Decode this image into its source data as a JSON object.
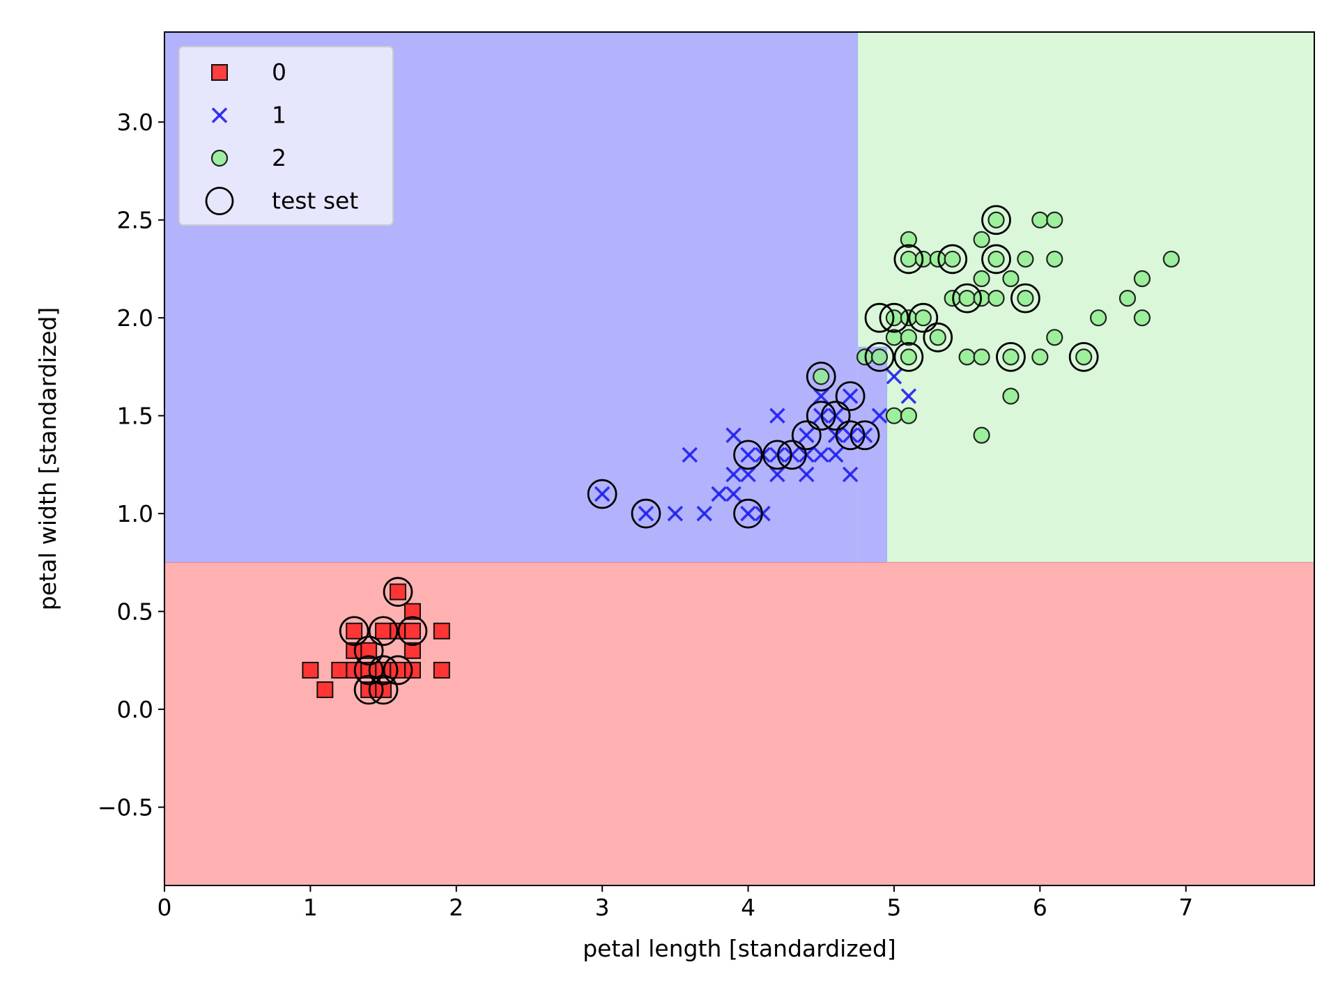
{
  "chart_data": {
    "type": "scatter",
    "title": "",
    "xlabel": "petal length [standardized]",
    "ylabel": "petal width [standardized]",
    "xlim": [
      0,
      7.88
    ],
    "ylim": [
      -0.9,
      3.46
    ],
    "xticks": [
      0,
      1,
      2,
      3,
      4,
      5,
      6,
      7
    ],
    "xtick_labels": [
      "0",
      "1",
      "2",
      "3",
      "4",
      "5",
      "6",
      "7"
    ],
    "yticks": [
      -0.5,
      0.0,
      0.5,
      1.0,
      1.5,
      2.0,
      2.5,
      3.0
    ],
    "ytick_labels": [
      "−0.5",
      "0.0",
      "0.5",
      "1.0",
      "1.5",
      "2.0",
      "2.5",
      "3.0"
    ],
    "grid": false,
    "legend": {
      "placement": "upper left",
      "entries": [
        "0",
        "1",
        "2",
        "test set"
      ]
    },
    "decision_regions": [
      {
        "class": "0",
        "color": "#ffb1b1",
        "x_range": [
          0,
          7.88
        ],
        "y_range": [
          -0.9,
          0.75
        ]
      },
      {
        "class": "1",
        "color": "#b3b3fd",
        "x_range": [
          0,
          4.75
        ],
        "y_range": [
          0.75,
          3.46
        ]
      },
      {
        "class": "1",
        "color": "#b3b3fd",
        "x_range": [
          4.75,
          4.95
        ],
        "y_range": [
          0.75,
          1.85
        ]
      },
      {
        "class": "2",
        "color": "#daf7da",
        "x_range": [
          4.75,
          7.88
        ],
        "y_range": [
          1.85,
          3.46
        ]
      },
      {
        "class": "2",
        "color": "#daf7da",
        "x_range": [
          4.95,
          7.88
        ],
        "y_range": [
          0.75,
          1.85
        ]
      }
    ],
    "series": [
      {
        "name": "0",
        "marker": "square",
        "color": "#ff2020",
        "points": [
          [
            1.0,
            0.2
          ],
          [
            1.1,
            0.1
          ],
          [
            1.2,
            0.2
          ],
          [
            1.3,
            0.2
          ],
          [
            1.3,
            0.3
          ],
          [
            1.3,
            0.4
          ],
          [
            1.4,
            0.1
          ],
          [
            1.4,
            0.2
          ],
          [
            1.4,
            0.3
          ],
          [
            1.5,
            0.1
          ],
          [
            1.5,
            0.2
          ],
          [
            1.5,
            0.4
          ],
          [
            1.6,
            0.2
          ],
          [
            1.6,
            0.4
          ],
          [
            1.6,
            0.6
          ],
          [
            1.7,
            0.2
          ],
          [
            1.7,
            0.3
          ],
          [
            1.7,
            0.4
          ],
          [
            1.7,
            0.5
          ],
          [
            1.9,
            0.2
          ],
          [
            1.9,
            0.4
          ]
        ]
      },
      {
        "name": "1",
        "marker": "x",
        "color": "#2020ee",
        "points": [
          [
            3.0,
            1.1
          ],
          [
            3.3,
            1.0
          ],
          [
            3.5,
            1.0
          ],
          [
            3.6,
            1.3
          ],
          [
            3.7,
            1.0
          ],
          [
            3.8,
            1.1
          ],
          [
            3.9,
            1.1
          ],
          [
            3.9,
            1.2
          ],
          [
            3.9,
            1.4
          ],
          [
            4.0,
            1.0
          ],
          [
            4.0,
            1.2
          ],
          [
            4.0,
            1.3
          ],
          [
            4.1,
            1.0
          ],
          [
            4.1,
            1.3
          ],
          [
            4.2,
            1.2
          ],
          [
            4.2,
            1.3
          ],
          [
            4.2,
            1.5
          ],
          [
            4.3,
            1.3
          ],
          [
            4.4,
            1.2
          ],
          [
            4.4,
            1.3
          ],
          [
            4.4,
            1.4
          ],
          [
            4.5,
            1.3
          ],
          [
            4.5,
            1.5
          ],
          [
            4.5,
            1.6
          ],
          [
            4.6,
            1.3
          ],
          [
            4.6,
            1.4
          ],
          [
            4.6,
            1.5
          ],
          [
            4.7,
            1.2
          ],
          [
            4.7,
            1.4
          ],
          [
            4.7,
            1.6
          ],
          [
            4.8,
            1.4
          ],
          [
            4.9,
            1.5
          ],
          [
            5.0,
            1.7
          ],
          [
            5.1,
            1.6
          ]
        ]
      },
      {
        "name": "2",
        "marker": "circle",
        "color": "#90ee90",
        "points": [
          [
            4.5,
            1.7
          ],
          [
            4.8,
            1.8
          ],
          [
            4.9,
            1.8
          ],
          [
            5.0,
            1.5
          ],
          [
            5.0,
            1.9
          ],
          [
            5.0,
            2.0
          ],
          [
            5.1,
            1.5
          ],
          [
            5.1,
            1.8
          ],
          [
            5.1,
            1.9
          ],
          [
            5.1,
            2.0
          ],
          [
            5.1,
            2.3
          ],
          [
            5.1,
            2.4
          ],
          [
            5.2,
            2.0
          ],
          [
            5.2,
            2.3
          ],
          [
            5.3,
            1.9
          ],
          [
            5.3,
            2.3
          ],
          [
            5.4,
            2.1
          ],
          [
            5.4,
            2.3
          ],
          [
            5.5,
            1.8
          ],
          [
            5.5,
            2.1
          ],
          [
            5.6,
            1.4
          ],
          [
            5.6,
            1.8
          ],
          [
            5.6,
            2.1
          ],
          [
            5.6,
            2.2
          ],
          [
            5.6,
            2.4
          ],
          [
            5.7,
            2.1
          ],
          [
            5.7,
            2.3
          ],
          [
            5.7,
            2.5
          ],
          [
            5.8,
            1.6
          ],
          [
            5.8,
            1.8
          ],
          [
            5.8,
            2.2
          ],
          [
            5.9,
            2.1
          ],
          [
            5.9,
            2.3
          ],
          [
            6.0,
            1.8
          ],
          [
            6.0,
            2.5
          ],
          [
            6.1,
            1.9
          ],
          [
            6.1,
            2.3
          ],
          [
            6.1,
            2.5
          ],
          [
            6.3,
            1.8
          ],
          [
            6.4,
            2.0
          ],
          [
            6.6,
            2.1
          ],
          [
            6.7,
            2.0
          ],
          [
            6.7,
            2.2
          ],
          [
            6.9,
            2.3
          ]
        ]
      },
      {
        "name": "test set",
        "marker": "hollow-circle",
        "color": "#000000",
        "points": [
          [
            1.3,
            0.4
          ],
          [
            1.4,
            0.1
          ],
          [
            1.4,
            0.2
          ],
          [
            1.4,
            0.3
          ],
          [
            1.5,
            0.1
          ],
          [
            1.5,
            0.2
          ],
          [
            1.5,
            0.4
          ],
          [
            1.6,
            0.2
          ],
          [
            1.6,
            0.6
          ],
          [
            1.7,
            0.4
          ],
          [
            3.0,
            1.1
          ],
          [
            3.3,
            1.0
          ],
          [
            4.0,
            1.0
          ],
          [
            4.0,
            1.3
          ],
          [
            4.2,
            1.3
          ],
          [
            4.3,
            1.3
          ],
          [
            4.4,
            1.4
          ],
          [
            4.5,
            1.5
          ],
          [
            4.5,
            1.7
          ],
          [
            4.6,
            1.5
          ],
          [
            4.7,
            1.4
          ],
          [
            4.7,
            1.6
          ],
          [
            4.8,
            1.4
          ],
          [
            4.9,
            1.8
          ],
          [
            4.9,
            2.0
          ],
          [
            5.0,
            2.0
          ],
          [
            5.1,
            1.8
          ],
          [
            5.1,
            2.3
          ],
          [
            5.2,
            2.0
          ],
          [
            5.3,
            1.9
          ],
          [
            5.4,
            2.3
          ],
          [
            5.5,
            2.1
          ],
          [
            5.7,
            2.3
          ],
          [
            5.7,
            2.5
          ],
          [
            5.8,
            1.8
          ],
          [
            5.9,
            2.1
          ],
          [
            6.3,
            1.8
          ]
        ]
      }
    ]
  }
}
